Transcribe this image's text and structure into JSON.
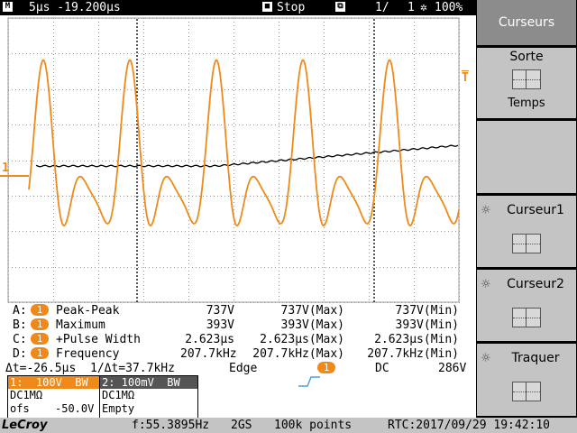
{
  "top_bar": {
    "mode_icon": "M",
    "timebase": "5µs -19.200µs",
    "stop_icon": "stop-square-icon",
    "state": "Stop",
    "history_icon": "history-stack-icon",
    "page_current": "1/",
    "page_total": "1",
    "brightness_icon": "gear-sun-icon",
    "zoom": "100%"
  },
  "right_panel": {
    "cursors": "Curseurs",
    "sorte_label": "Sorte",
    "sorte_value": "Temps",
    "cursor1": "Curseur1",
    "cursor2": "Curseur2",
    "track": "Traquer"
  },
  "markers": {
    "ch1_level": "1",
    "trigger_level": "T"
  },
  "measurements": [
    {
      "id": "A:",
      "ch": "1",
      "name": "Peak-Peak",
      "cur": "737V",
      "max": "737V(Max)",
      "min": "737V(Min)"
    },
    {
      "id": "B:",
      "ch": "1",
      "name": "Maximum",
      "cur": "393V",
      "max": "393V(Max)",
      "min": "393V(Min)"
    },
    {
      "id": "C:",
      "ch": "1",
      "name": "+Pulse Width",
      "cur": "2.623µs",
      "max": "2.623µs(Max)",
      "min": "2.623µs(Min)"
    },
    {
      "id": "D:",
      "ch": "1",
      "name": "Frequency",
      "cur": "207.7kHz",
      "max": "207.7kHz(Max)",
      "min": "207.7kHz(Min)"
    }
  ],
  "cursor_readout": {
    "delta_t": "Δt=-26.5µs",
    "inv_delta_t": "1/Δt=37.7kHz"
  },
  "trigger": {
    "type": "Edge",
    "source": "1",
    "coupling": "DC",
    "level": "286V"
  },
  "ch1": {
    "head": "1:  100V  BW",
    "coupling": "DC1MΩ",
    "offset_label": "ofs",
    "offset": "-50.0V"
  },
  "ch2": {
    "head": "2: 100mV  BW",
    "coupling": "DC1MΩ",
    "status": "Empty"
  },
  "bottom_bar": {
    "brand": "LeCroy",
    "freq": "f:55.3895Hz",
    "rate": "2GS",
    "points": "100k points",
    "rtc": "RTC:2017/09/29 19:42:10"
  },
  "colors": {
    "ch1": "#ef8a1a",
    "ch2": "#000000",
    "accent": "#4a9fd8"
  }
}
